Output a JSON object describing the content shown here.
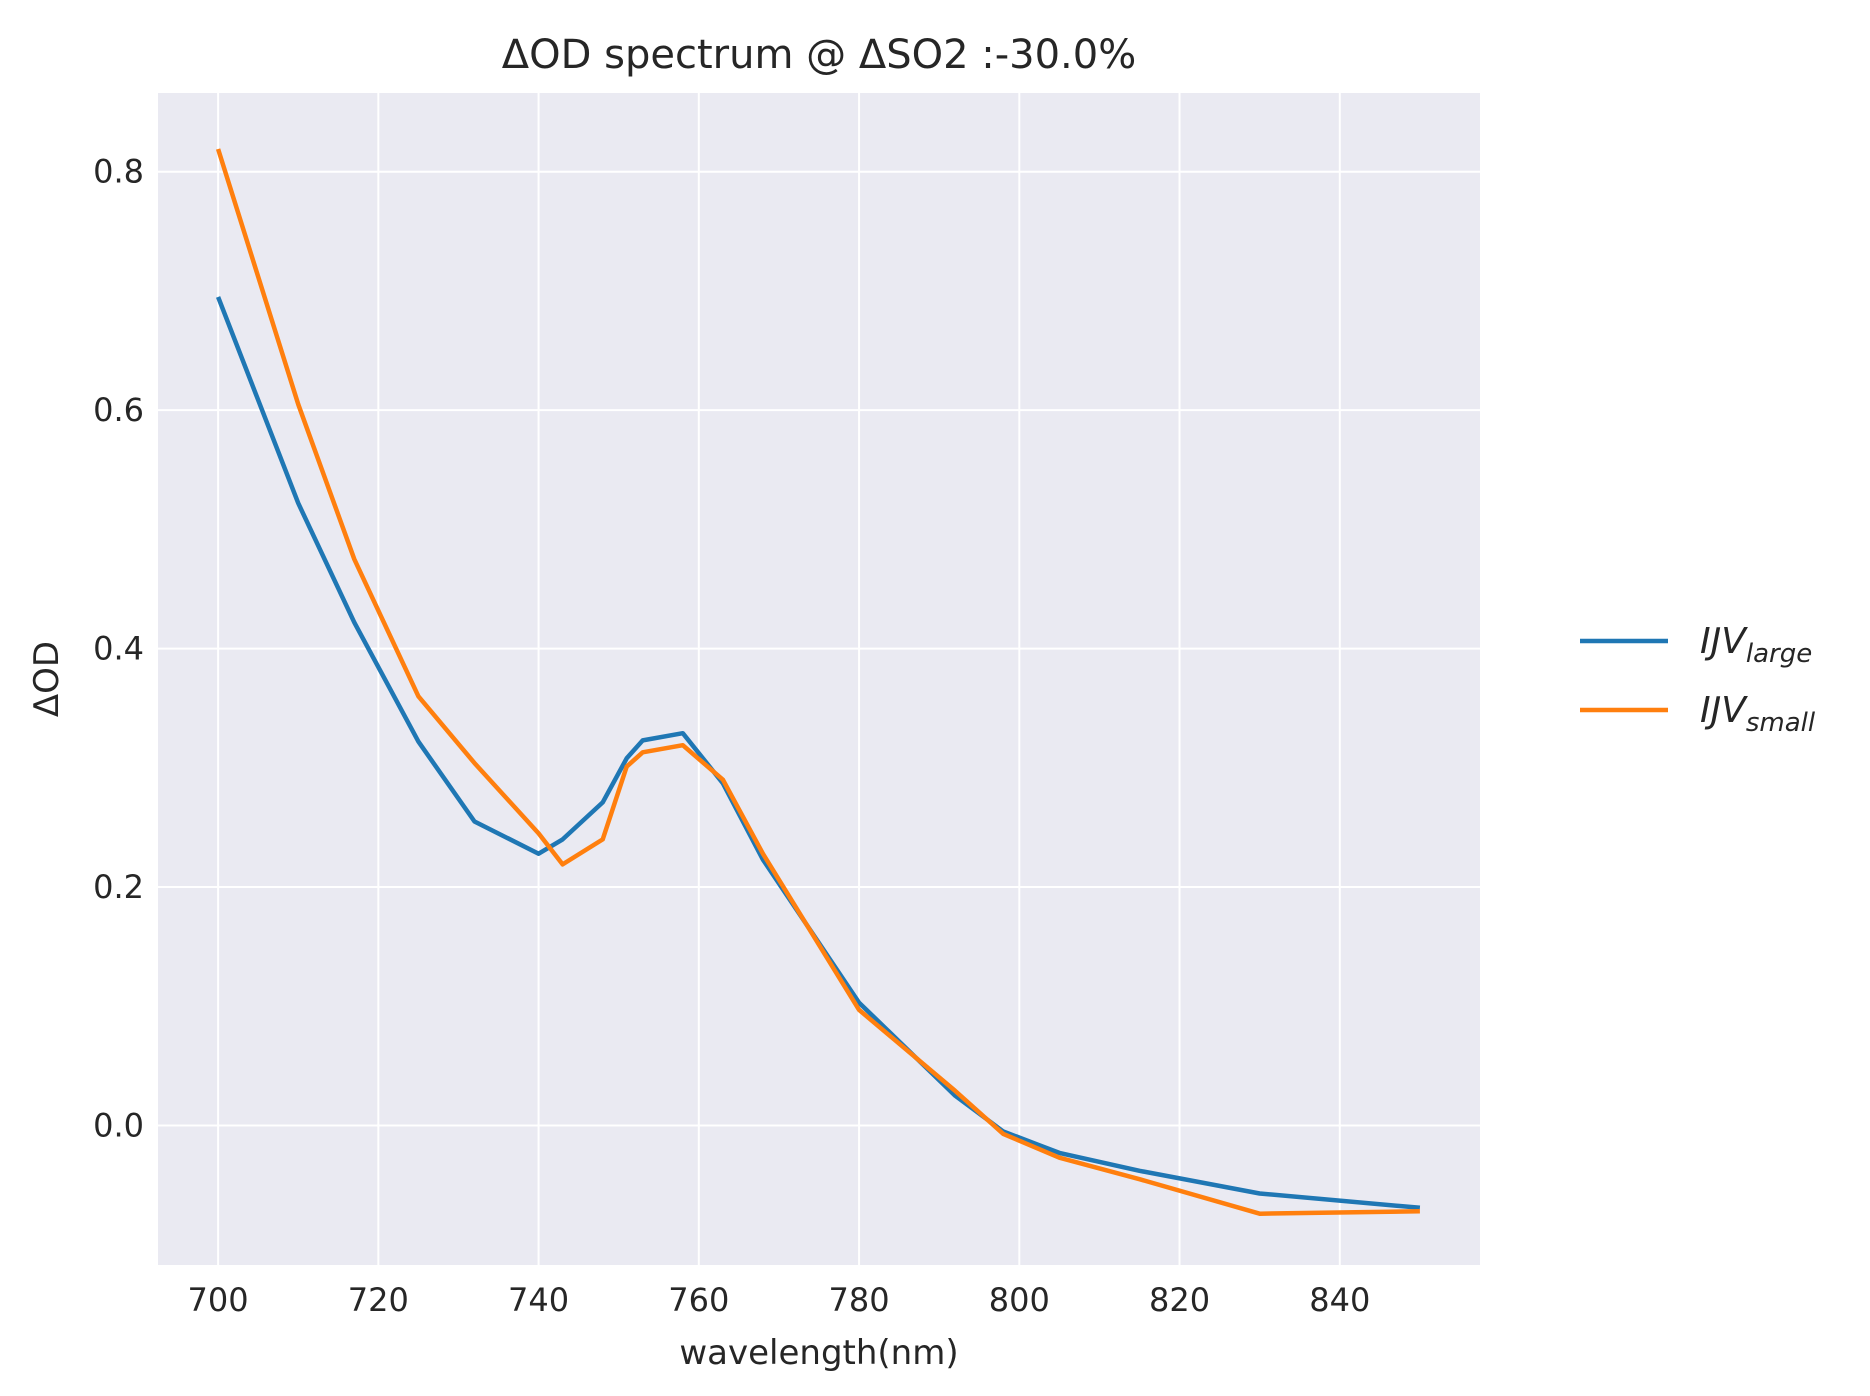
{
  "chart_data": {
    "type": "line",
    "title": "ΔOD spectrum @ ΔSO2 :-30.0%",
    "xlabel": "wavelength(nm)",
    "ylabel": "ΔOD",
    "xlim": [
      692.5,
      857.5
    ],
    "ylim": [
      -0.117,
      0.866
    ],
    "xticks": [
      700,
      720,
      740,
      760,
      780,
      800,
      820,
      840
    ],
    "yticks": [
      0.0,
      0.2,
      0.4,
      0.6,
      0.8
    ],
    "ytick_labels": [
      "0.0",
      "0.2",
      "0.4",
      "0.6",
      "0.8"
    ],
    "grid": true,
    "legend_position": "outside-right",
    "background": "#eaeaf2",
    "series": [
      {
        "name_base": "IJV",
        "name_sub": "large",
        "color": "#1f77b4",
        "x": [
          700,
          710,
          717,
          725,
          732,
          740,
          743,
          748,
          751,
          753,
          758,
          763,
          768,
          780,
          792,
          798,
          805,
          815,
          830,
          850
        ],
        "y": [
          0.695,
          0.522,
          0.422,
          0.322,
          0.255,
          0.228,
          0.24,
          0.271,
          0.308,
          0.323,
          0.329,
          0.287,
          0.223,
          0.103,
          0.025,
          -0.005,
          -0.023,
          -0.038,
          -0.057,
          -0.069
        ]
      },
      {
        "name_base": "IJV",
        "name_sub": "small",
        "color": "#ff7f0e",
        "x": [
          700,
          710,
          717,
          725,
          732,
          740,
          743,
          748,
          751,
          753,
          758,
          763,
          768,
          780,
          792,
          798,
          805,
          815,
          830,
          850
        ],
        "y": [
          0.819,
          0.605,
          0.475,
          0.36,
          0.304,
          0.245,
          0.219,
          0.24,
          0.301,
          0.313,
          0.319,
          0.29,
          0.228,
          0.097,
          0.029,
          -0.007,
          -0.027,
          -0.045,
          -0.074,
          -0.072
        ]
      }
    ]
  }
}
